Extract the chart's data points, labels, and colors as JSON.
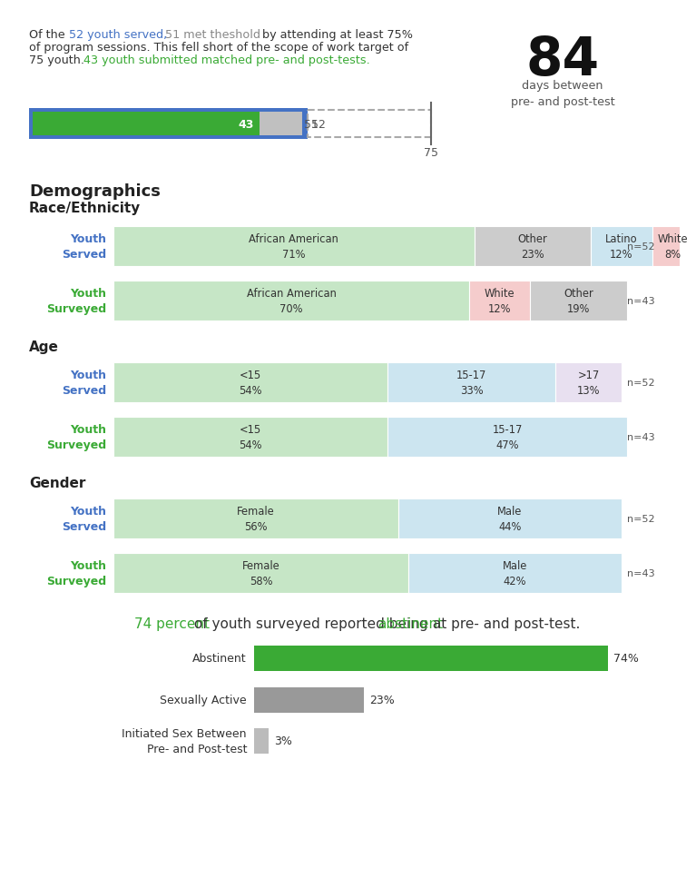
{
  "days_number": "84",
  "days_label": "days between\npre- and post-test",
  "bar_green": 43,
  "bar_silver": 51,
  "bar_blue_total": 52,
  "bar_target": 75,
  "demographics_title": "Demographics",
  "race_title": "Race/Ethnicity",
  "age_title": "Age",
  "gender_title": "Gender",
  "race_served": {
    "label": "Youth\nServed",
    "label_color": "#4472C4",
    "segments": [
      {
        "label": "African American\n71%",
        "value": 71,
        "color": "#c6e6c6"
      },
      {
        "label": "Other\n23%",
        "value": 23,
        "color": "#cccccc"
      },
      {
        "label": "Latino\n12%",
        "value": 12,
        "color": "#cce5f0"
      },
      {
        "label": "White\n8%",
        "value": 8,
        "color": "#f5cccc"
      }
    ],
    "n_label": "n=52"
  },
  "race_surveyed": {
    "label": "Youth\nSurveyed",
    "label_color": "#3aaa35",
    "segments": [
      {
        "label": "African American\n70%",
        "value": 70,
        "color": "#c6e6c6"
      },
      {
        "label": "White\n12%",
        "value": 12,
        "color": "#f5cccc"
      },
      {
        "label": "Other\n19%",
        "value": 19,
        "color": "#cccccc"
      }
    ],
    "n_label": "n=43"
  },
  "age_served": {
    "label": "Youth\nServed",
    "label_color": "#4472C4",
    "segments": [
      {
        "label": "<15\n54%",
        "value": 54,
        "color": "#c6e6c6"
      },
      {
        "label": "15-17\n33%",
        "value": 33,
        "color": "#cce5f0"
      },
      {
        "label": ">17\n13%",
        "value": 13,
        "color": "#e8e0f0"
      }
    ],
    "n_label": "n=52"
  },
  "age_surveyed": {
    "label": "Youth\nSurveyed",
    "label_color": "#3aaa35",
    "segments": [
      {
        "label": "<15\n54%",
        "value": 54,
        "color": "#c6e6c6"
      },
      {
        "label": "15-17\n47%",
        "value": 47,
        "color": "#cce5f0"
      }
    ],
    "n_label": "n=43"
  },
  "gender_served": {
    "label": "Youth\nServed",
    "label_color": "#4472C4",
    "segments": [
      {
        "label": "Female\n56%",
        "value": 56,
        "color": "#c6e6c6"
      },
      {
        "label": "Male\n44%",
        "value": 44,
        "color": "#cce5f0"
      }
    ],
    "n_label": "n=52"
  },
  "gender_surveyed": {
    "label": "Youth\nSurveyed",
    "label_color": "#3aaa35",
    "segments": [
      {
        "label": "Female\n58%",
        "value": 58,
        "color": "#c6e6c6"
      },
      {
        "label": "Male\n42%",
        "value": 42,
        "color": "#cce5f0"
      }
    ],
    "n_label": "n=43"
  },
  "outcome_bars": [
    {
      "label": "Abstinent",
      "value": 74,
      "color": "#3aaa35"
    },
    {
      "label": "Sexually Active",
      "value": 23,
      "color": "#999999"
    },
    {
      "label": "Initiated Sex Between\nPre- and Post-test",
      "value": 3,
      "color": "#bbbbbb"
    }
  ],
  "bg_color": "#ffffff",
  "fig_w": 739,
  "fig_h": 959
}
